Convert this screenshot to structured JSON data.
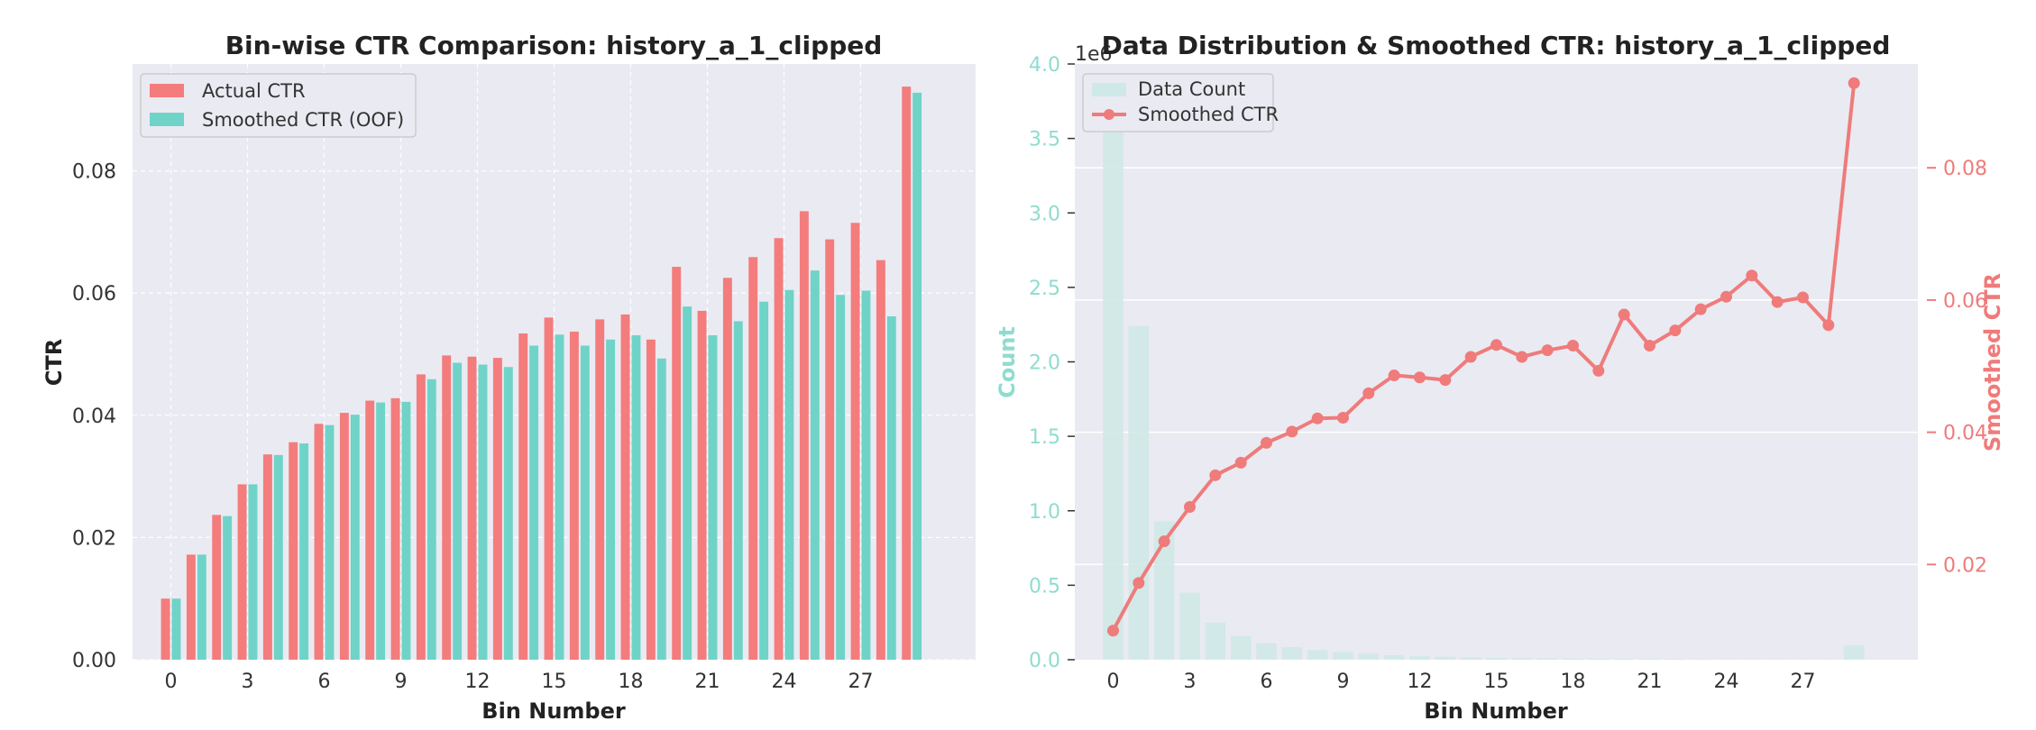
{
  "chart_data": [
    {
      "type": "bar",
      "title": "Bin-wise CTR Comparison: history_a_1_clipped",
      "xlabel": "Bin Number",
      "ylabel": "CTR",
      "xticks": [
        0,
        3,
        6,
        9,
        12,
        15,
        18,
        21,
        24,
        27
      ],
      "yticks": [
        "0.00",
        "0.02",
        "0.04",
        "0.06",
        "0.08"
      ],
      "ylim": [
        0,
        0.0975
      ],
      "xlim": [
        -1.5,
        31.5
      ],
      "grid": true,
      "legend_position": "top-left",
      "categories": [
        0,
        1,
        2,
        3,
        4,
        5,
        6,
        7,
        8,
        9,
        10,
        11,
        12,
        13,
        14,
        15,
        16,
        17,
        18,
        19,
        20,
        21,
        22,
        23,
        24,
        25,
        26,
        27,
        28,
        29
      ],
      "series": [
        {
          "name": "Actual CTR",
          "color": "#f47c7c",
          "values": [
            0.01,
            0.0172,
            0.0237,
            0.0287,
            0.0336,
            0.0356,
            0.0386,
            0.0404,
            0.0424,
            0.0428,
            0.0467,
            0.0498,
            0.0496,
            0.0494,
            0.0534,
            0.056,
            0.0537,
            0.0557,
            0.0565,
            0.0524,
            0.0643,
            0.0571,
            0.0625,
            0.0659,
            0.069,
            0.0734,
            0.0688,
            0.0715,
            0.0654,
            0.0938
          ]
        },
        {
          "name": "Smoothed CTR (OOF)",
          "color": "#6fd3c8",
          "values": [
            0.01,
            0.0172,
            0.0235,
            0.0287,
            0.0335,
            0.0354,
            0.0384,
            0.0401,
            0.0421,
            0.0422,
            0.0459,
            0.0486,
            0.0483,
            0.0479,
            0.0514,
            0.0532,
            0.0514,
            0.0524,
            0.0531,
            0.0493,
            0.0578,
            0.0531,
            0.0554,
            0.0586,
            0.0605,
            0.0637,
            0.0597,
            0.0604,
            0.0562,
            0.0928
          ]
        }
      ]
    },
    {
      "type": "bar+line",
      "title": "Data Distribution & Smoothed CTR: history_a_1_clipped",
      "xlabel": "Bin Number",
      "ylabel_left": "Count",
      "ylabel_right": "Smoothed CTR",
      "left_axis_multiplier": "1e6",
      "xticks": [
        0,
        3,
        6,
        9,
        12,
        15,
        18,
        21,
        24,
        27
      ],
      "yticks_left": [
        "0.0",
        "0.5",
        "1.0",
        "1.5",
        "2.0",
        "2.5",
        "3.0",
        "3.5",
        "4.0"
      ],
      "yticks_right": [
        "0.02",
        "0.04",
        "0.06",
        "0.08"
      ],
      "ylim_left": [
        0,
        4000000
      ],
      "ylim_right": [
        0.0056,
        0.0957
      ],
      "xlim": [
        -1.5,
        31.5
      ],
      "legend_position": "top-left",
      "categories": [
        0,
        1,
        2,
        3,
        4,
        5,
        6,
        7,
        8,
        9,
        10,
        11,
        12,
        13,
        14,
        15,
        16,
        17,
        18,
        19,
        20,
        21,
        22,
        23,
        24,
        25,
        26,
        27,
        28,
        29
      ],
      "series": [
        {
          "name": "Data Count",
          "color": "#cfe9e6",
          "axis": "left",
          "type": "bar",
          "values": [
            3900000,
            2240000,
            930000,
            450000,
            250000,
            160000,
            110000,
            85000,
            65000,
            50000,
            40000,
            30000,
            24000,
            20000,
            15000,
            12000,
            10000,
            9000,
            8000,
            7000,
            6000,
            5000,
            4500,
            4000,
            3500,
            3000,
            2800,
            2600,
            2400,
            95000
          ]
        },
        {
          "name": "Smoothed CTR",
          "color": "#ef7b7b",
          "axis": "right",
          "type": "line",
          "values": [
            0.01,
            0.0172,
            0.0235,
            0.0287,
            0.0335,
            0.0354,
            0.0384,
            0.0401,
            0.0421,
            0.0422,
            0.0459,
            0.0486,
            0.0483,
            0.0479,
            0.0514,
            0.0532,
            0.0514,
            0.0524,
            0.0531,
            0.0493,
            0.0578,
            0.0531,
            0.0554,
            0.0586,
            0.0605,
            0.0637,
            0.0597,
            0.0604,
            0.0562,
            0.0928
          ]
        }
      ]
    }
  ]
}
